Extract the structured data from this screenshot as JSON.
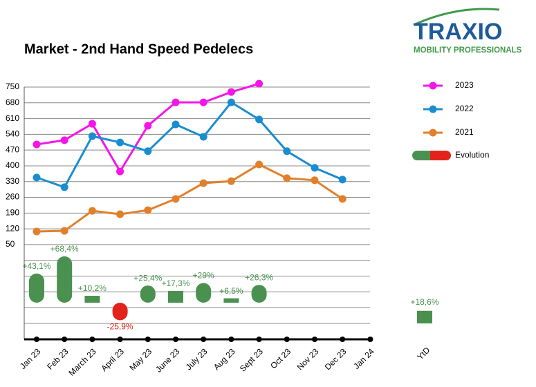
{
  "chart_data": {
    "type": "line",
    "title": "Market - 2nd Hand Speed Pedelecs",
    "logo": {
      "name": "TRAXIO",
      "tagline": "MOBILITY PROFESSIONALS"
    },
    "categories": [
      "Jan 23",
      "Feb 23",
      "March 23",
      "April 23",
      "May 23",
      "June 23",
      "July 23",
      "Aug 23",
      "Sept 23",
      "Oct 23",
      "Nov 23",
      "Dec 23",
      "Jan 24"
    ],
    "ylim": [
      -371,
      750
    ],
    "yticks": [
      50,
      120,
      190,
      260,
      330,
      400,
      470,
      540,
      610,
      680,
      750
    ],
    "grid": true,
    "series": [
      {
        "name": "2023",
        "color": "#f515e8",
        "values": [
          495,
          514,
          587,
          375,
          578,
          682,
          682,
          728,
          765,
          null,
          null,
          null,
          null
        ]
      },
      {
        "name": "2022",
        "color": "#1a8dd0",
        "values": [
          348,
          305,
          532,
          504,
          465,
          584,
          529,
          682,
          606,
          465,
          391,
          339,
          null
        ]
      },
      {
        "name": "2021",
        "color": "#e27f2a",
        "values": [
          108,
          111,
          200,
          185,
          203,
          253,
          323,
          332,
          406,
          345,
          336,
          253,
          null
        ]
      }
    ],
    "evolution": {
      "name": "Evolution",
      "axis": "y2",
      "color_positive": "#4a9150",
      "color_negative": "#e3231b",
      "values": [
        43.1,
        68.4,
        10.2,
        -25.9,
        25.4,
        17.3,
        29,
        6.5,
        26.3,
        null,
        null,
        null,
        null
      ],
      "value_labels": [
        "+43,1%",
        "+68,4%",
        "+10,2%",
        "-25,9%",
        "+25,4%",
        "+17,3%",
        "+29%",
        "+6,5%",
        "+26,3%",
        null,
        null,
        null,
        null
      ]
    },
    "y2lim": [
      -54,
      318
    ],
    "ytd": {
      "label": "YtD",
      "value": 18.6,
      "value_label": "+18,6%"
    }
  }
}
